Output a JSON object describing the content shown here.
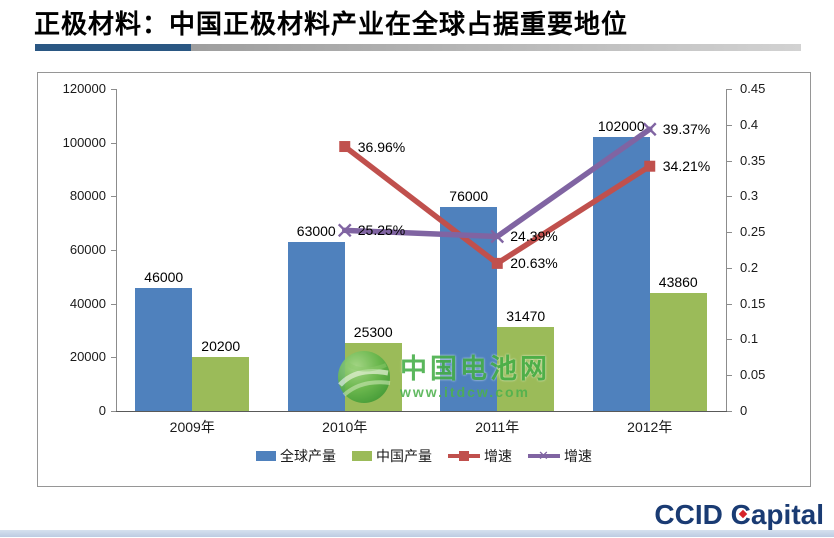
{
  "slide": {
    "title": "正极材料：中国正极材料产业在全球占据重要地位"
  },
  "chart_data": {
    "type": "bar",
    "subtype": "combo-bar-line",
    "title": "",
    "categories": [
      "2009年",
      "2010年",
      "2011年",
      "2012年"
    ],
    "series": [
      {
        "name": "全球产量",
        "type": "bar",
        "axis": "left",
        "color": "#4F81BD",
        "values": [
          46000,
          63000,
          76000,
          102000
        ],
        "labels": [
          "46000",
          "63000",
          "76000",
          "102000"
        ]
      },
      {
        "name": "中国产量",
        "type": "bar",
        "axis": "left",
        "color": "#9BBB59",
        "values": [
          20200,
          25300,
          31470,
          43860
        ],
        "labels": [
          "20200",
          "25300",
          "31470",
          "43860"
        ]
      },
      {
        "name": "增速",
        "type": "line",
        "marker": "square",
        "axis": "right",
        "color": "#C0504D",
        "values": [
          null,
          0.3696,
          0.2063,
          0.3421
        ],
        "labels": [
          "",
          "36.96%",
          "20.63%",
          "34.21%"
        ]
      },
      {
        "name": "增速",
        "type": "line",
        "marker": "x",
        "axis": "right",
        "color": "#8064A2",
        "values": [
          null,
          0.2525,
          0.2439,
          0.3937
        ],
        "labels": [
          "",
          "25.25%",
          "24.39%",
          "39.37%"
        ]
      }
    ],
    "left_axis": {
      "min": 0,
      "max": 120000,
      "ticks": [
        "0",
        "20000",
        "40000",
        "60000",
        "80000",
        "100000",
        "120000"
      ]
    },
    "right_axis": {
      "min": 0,
      "max": 0.45,
      "ticks": [
        "0",
        "0.05",
        "0.1",
        "0.15",
        "0.2",
        "0.25",
        "0.3",
        "0.35",
        "0.4",
        "0.45"
      ]
    },
    "grid": false,
    "legend_position": "bottom"
  },
  "watermark": {
    "name": "中国电池网",
    "url": "www.itdcw.com"
  },
  "logo": {
    "ccid": "CCID",
    "capital_c": "C",
    "capital_rest": "apital"
  }
}
